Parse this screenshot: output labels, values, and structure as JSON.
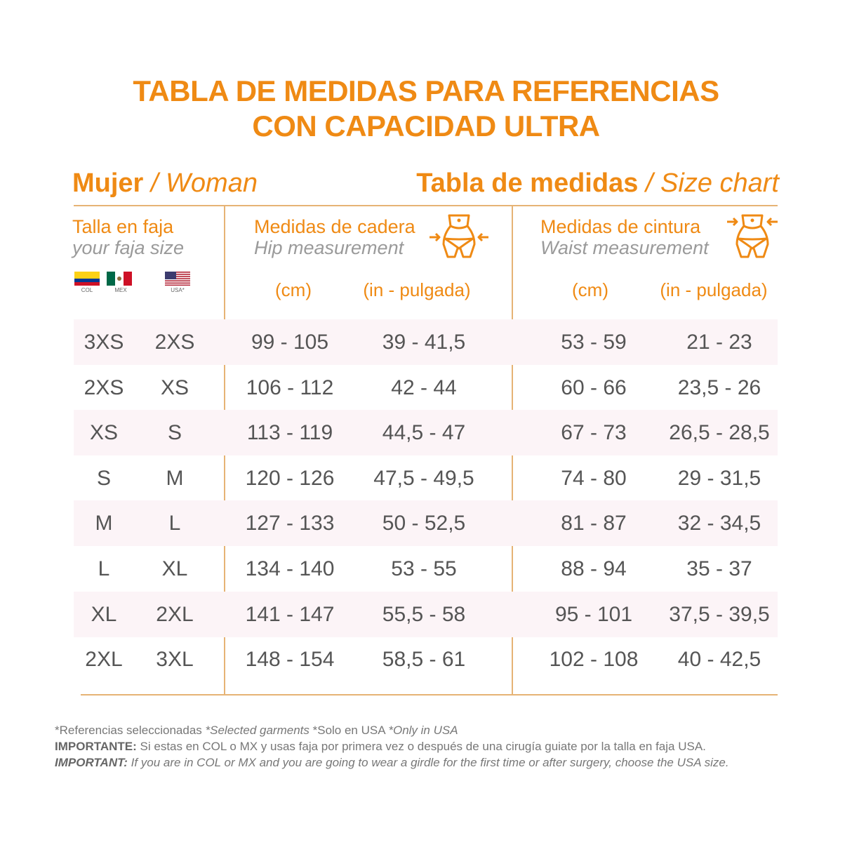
{
  "title": {
    "line1": "TABLA DE MEDIDAS PARA REFERENCIAS",
    "line2": "CON CAPACIDAD ULTRA"
  },
  "section_left": {
    "es": "Mujer",
    "sep": " / ",
    "en": "Woman"
  },
  "section_right": {
    "es": "Tabla de medidas",
    "sep": " / ",
    "en": "Size chart"
  },
  "colors": {
    "accent": "#ef8a14",
    "row_shade": "#fcf4f7",
    "text": "#555555"
  },
  "size_header": {
    "es": "Talla en faja",
    "en": "your faja size",
    "flags": [
      {
        "label": "COL",
        "icon": "colombia-flag-icon"
      },
      {
        "label": "MEX",
        "icon": "mexico-flag-icon"
      },
      {
        "label": "USA*",
        "icon": "usa-flag-icon"
      }
    ]
  },
  "hip_header": {
    "es": "Medidas de cadera",
    "en": "Hip measurement",
    "icon": "hip-body-icon",
    "unit_cm": "(cm)",
    "unit_in": "(in - pulgada)"
  },
  "waist_header": {
    "es": "Medidas de cintura",
    "en": "Waist measurement",
    "icon": "waist-body-icon",
    "unit_cm": "(cm)",
    "unit_in": "(in - pulgada)"
  },
  "rows": [
    {
      "col_mex": "3XS",
      "usa": "2XS",
      "hip_cm": "99  -  105",
      "hip_in": "39  -  41,5",
      "waist_cm": "53 - 59",
      "waist_in": "21 - 23"
    },
    {
      "col_mex": "2XS",
      "usa": "XS",
      "hip_cm": "106 - 112",
      "hip_in": "42 - 44",
      "waist_cm": "60 - 66",
      "waist_in": "23,5 - 26"
    },
    {
      "col_mex": "XS",
      "usa": "S",
      "hip_cm": "113 - 119",
      "hip_in": "44,5 - 47",
      "waist_cm": "67 - 73",
      "waist_in": "26,5 - 28,5"
    },
    {
      "col_mex": "S",
      "usa": "M",
      "hip_cm": "120 - 126",
      "hip_in": "47,5 - 49,5",
      "waist_cm": "74 - 80",
      "waist_in": "29 - 31,5"
    },
    {
      "col_mex": "M",
      "usa": "L",
      "hip_cm": "127 - 133",
      "hip_in": "50 - 52,5",
      "waist_cm": "81 - 87",
      "waist_in": "32 - 34,5"
    },
    {
      "col_mex": "L",
      "usa": "XL",
      "hip_cm": "134 - 140",
      "hip_in": "53 - 55",
      "waist_cm": "88 - 94",
      "waist_in": "35 - 37"
    },
    {
      "col_mex": "XL",
      "usa": "2XL",
      "hip_cm": "141 - 147",
      "hip_in": "55,5 - 58",
      "waist_cm": "95 - 101",
      "waist_in": "37,5 - 39,5"
    },
    {
      "col_mex": "2XL",
      "usa": "3XL",
      "hip_cm": "148 - 154",
      "hip_in": "58,5 - 61",
      "waist_cm": "102 - 108",
      "waist_in": "40 - 42,5"
    }
  ],
  "footer": {
    "line1_es": "*Referencias seleccionadas ",
    "line1_en": "*Selected garments",
    "line1_es2": " *Solo en USA ",
    "line1_en2": "*Only in USA",
    "line2_label": "IMPORTANTE:",
    "line2_text": " Si estas en COL o MX y usas faja por primera vez o después de una cirugía guiate por la talla en faja USA.",
    "line3_label": "IMPORTANT:",
    "line3_text": " If you are in COL or MX and you are going to wear a girdle for the first time or after surgery, choose the USA size."
  }
}
